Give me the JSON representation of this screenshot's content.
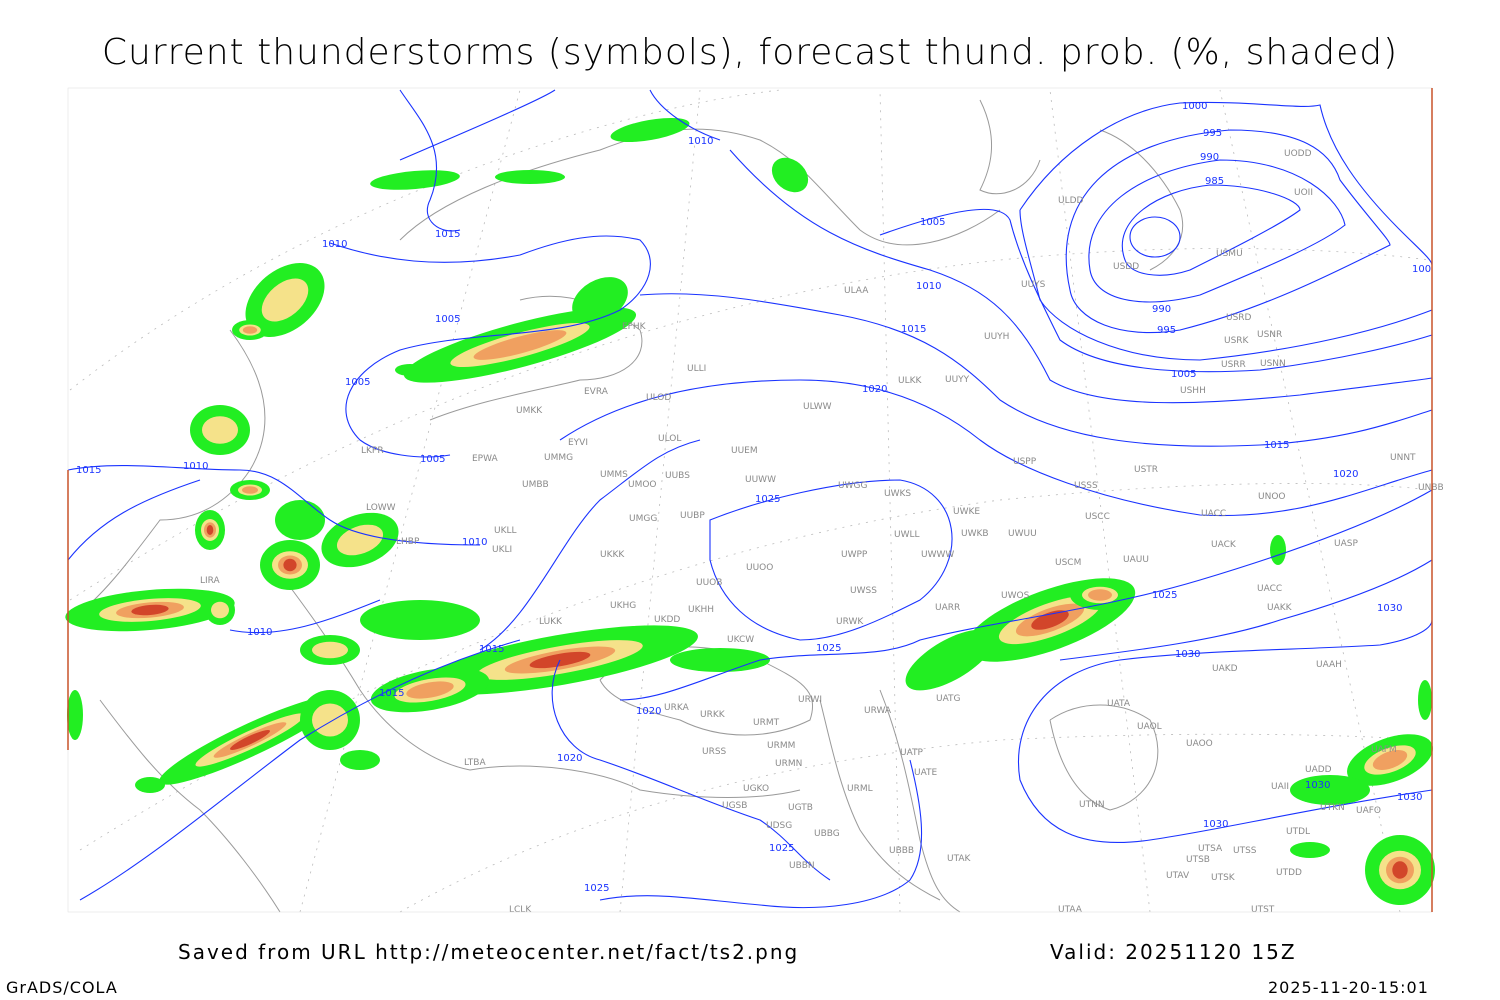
{
  "title": "Current thunderstorms (symbols), forecast thund. prob. (%, shaded)",
  "footer": {
    "saved_from": "Saved from URL http://meteocenter.net/fact/ts2.png",
    "valid": "Valid: 20251120 15Z",
    "software": "GrADS/COLA",
    "timestamp": "2025-11-20-15:01"
  },
  "colors": {
    "isobar": "#1a33ff",
    "coast": "#9a9a9a",
    "station": "#8a8a8a",
    "prob_low": "#22ee22",
    "prob_mid": "#f5e28a",
    "prob_high": "#f0a060",
    "prob_max": "#d2452a"
  },
  "isobar_labels": [
    "1000",
    "995",
    "990",
    "985",
    "990",
    "995",
    "1005",
    "1005",
    "100",
    "1010",
    "1015",
    "1010",
    "1005",
    "1010",
    "1015",
    "1005",
    "1020",
    "1015",
    "1020",
    "1005",
    "1010",
    "1015",
    "1025",
    "1010",
    "1025",
    "1030",
    "1030",
    "1015",
    "1010",
    "1025",
    "1020",
    "1015",
    "1020",
    "1030",
    "1030",
    "1030",
    "1025",
    "1025"
  ],
  "stations": [
    "ULDD",
    "USDD",
    "USMU",
    "UOII",
    "UODD",
    "UUYS",
    "ULAA",
    "UUYH",
    "USRD",
    "USRK",
    "USNR",
    "USRR",
    "USNN",
    "USHH",
    "UUYY",
    "ULKK",
    "ULWW",
    "ULLI",
    "ULOD",
    "ULOL",
    "UUEM",
    "EVRA",
    "EFHK",
    "UMKK",
    "EYVI",
    "UMMG",
    "EPWA",
    "LKPR",
    "UMMS",
    "UMOO",
    "UUBS",
    "UMBB",
    "UUWW",
    "UWGG",
    "UWKS",
    "USPP",
    "USSS",
    "USTR",
    "UNOO",
    "UNNT",
    "UNBB",
    "LOWW",
    "LHBP",
    "UKLL",
    "UKLI",
    "UMGG",
    "UUBP",
    "UWKE",
    "UWKB",
    "UWUU",
    "USCC",
    "UACC",
    "UWLL",
    "UWWW",
    "UWPP",
    "UACK",
    "UASP",
    "UKKK",
    "UUOO",
    "USCM",
    "UAUU",
    "LIRA",
    "UUOB",
    "UWSS",
    "UACC",
    "UAKK",
    "UARR",
    "UKHG",
    "UKDD",
    "UKHH",
    "UWOS",
    "LUKK",
    "URWK",
    "UKCW",
    "UAKD",
    "UAAH",
    "UATA",
    "UATG",
    "URWI",
    "URKA",
    "URKK",
    "URMT",
    "URWA",
    "UAOL",
    "UAOO",
    "URSS",
    "URMM",
    "URMN",
    "UATE",
    "UATP",
    "LTBA",
    "UGKO",
    "UGSB",
    "UGTB",
    "URML",
    "UTNN",
    "UDSG",
    "UBBG",
    "UBBB",
    "UTAK",
    "UTSA",
    "UTSS",
    "UTSB",
    "UTDL",
    "UTDD",
    "UTAV",
    "UTSK",
    "UTST",
    "UTAA",
    "UBBN",
    "LCLK",
    "UAFO",
    "UTKN",
    "UAII",
    "UADD",
    "UAFM"
  ]
}
